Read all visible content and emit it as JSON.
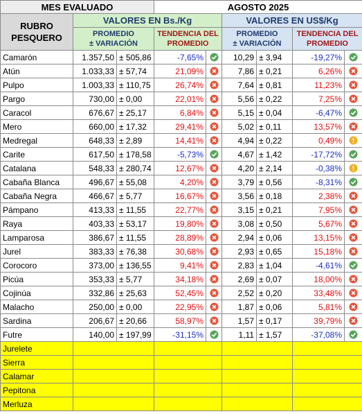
{
  "header": {
    "mes_label": "MES EVALUADO",
    "mes_value": "AGOSTO 2025",
    "rubro": [
      "RUBRO",
      "PESQUERO"
    ],
    "bs_title": "VALORES EN Bs./Kg",
    "usd_title": "VALORES EN US$/Kg",
    "promedio": [
      "PROMEDIO",
      "± VARIACIÓN"
    ],
    "tendencia": [
      "TENDENCIA DEL",
      "PROMEDIO"
    ]
  },
  "table": {
    "rows": [
      [
        "Camarón",
        "1.357,50",
        "± 505,86",
        "-7,65%",
        "10,29",
        "± 3,94",
        "-19,27%"
      ],
      [
        "Atún",
        "1.033,33",
        "± 57,74",
        "21,09%",
        "7,86",
        "± 0,21",
        "6,26%"
      ],
      [
        "Pulpo",
        "1.003,33",
        "± 110,75",
        "26,74%",
        "7,64",
        "± 0,81",
        "11,23%"
      ],
      [
        "Pargo",
        "730,00",
        "± 0,00",
        "22,01%",
        "5,56",
        "± 0,22",
        "7,25%"
      ],
      [
        "Caracol",
        "676,67",
        "± 25,17",
        "6,84%",
        "5,15",
        "± 0,04",
        "-6,47%"
      ],
      [
        "Mero",
        "660,00",
        "± 17,32",
        "29,41%",
        "5,02",
        "± 0,11",
        "13,57%"
      ],
      [
        "Medregal",
        "648,33",
        "± 2,89",
        "14,41%",
        "4,94",
        "± 0,22",
        "0,49%"
      ],
      [
        "Carite",
        "617,50",
        "± 178,58",
        "-5,73%",
        "4,67",
        "± 1,42",
        "-17,72%"
      ],
      [
        "Catalana",
        "548,33",
        "± 280,74",
        "12,67%",
        "4,20",
        "± 2,14",
        "-0,38%"
      ],
      [
        "Cabaña Blanca",
        "496,67",
        "± 55,08",
        "4,20%",
        "3,79",
        "± 0,56",
        "-8,31%"
      ],
      [
        "Cabaña Negra",
        "466,67",
        "± 5,77",
        "16,67%",
        "3,56",
        "± 0,18",
        "2,38%"
      ],
      [
        "Pámpano",
        "413,33",
        "± 11,55",
        "22,77%",
        "3,15",
        "± 0,21",
        "7,95%"
      ],
      [
        "Raya",
        "403,33",
        "± 53,17",
        "19,80%",
        "3,08",
        "± 0,50",
        "5,67%"
      ],
      [
        "Lamparosa",
        "386,67",
        "± 11,55",
        "28,89%",
        "2,94",
        "± 0,06",
        "13,15%"
      ],
      [
        "Jurel",
        "383,33",
        "± 76,38",
        "30,68%",
        "2,93",
        "± 0,65",
        "15,18%"
      ],
      [
        "Corocoro",
        "373,00",
        "± 136,55",
        "9,41%",
        "2,83",
        "± 1,04",
        "-4,61%"
      ],
      [
        "Picúa",
        "353,33",
        "± 5,77",
        "34,18%",
        "2,69",
        "± 0,07",
        "18,00%"
      ],
      [
        "Cojinúa",
        "332,86",
        "± 25,63",
        "52,45%",
        "2,52",
        "± 0,20",
        "33,48%"
      ],
      [
        "Malacho",
        "250,00",
        "± 0,00",
        "22,95%",
        "1,87",
        "± 0,06",
        "5,81%"
      ],
      [
        "Sardina",
        "206,67",
        "± 20,66",
        "58,97%",
        "1,57",
        "± 0,17",
        "39,79%"
      ],
      [
        "Futre",
        "140,00",
        "± 197,99",
        "-31,15%",
        "1,11",
        "± 1,57",
        "-37,08%"
      ]
    ],
    "empty_rows": [
      "Jurelete",
      "Sierra",
      "Calamar",
      "Pepitona",
      "Merluza"
    ]
  }
}
